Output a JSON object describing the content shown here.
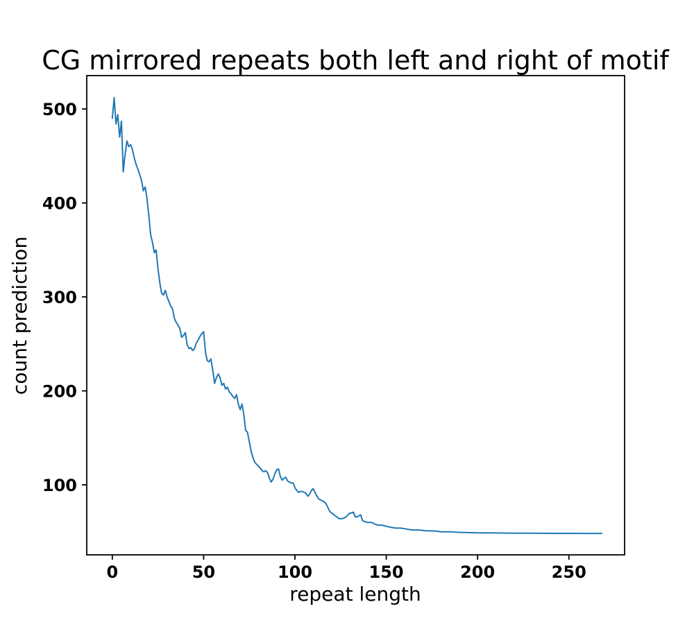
{
  "figure": {
    "background_color": "#ffffff"
  },
  "chart_data": {
    "type": "line",
    "title": "CG mirrored repeats both left and right of motif",
    "xlabel": "repeat length",
    "ylabel": "count prediction",
    "legend": null,
    "grid": false,
    "line_color": "#1f77b4",
    "line_width": 2,
    "spine_color": "#000000",
    "tick_color": "#000000",
    "xlim": [
      -14,
      280.5
    ],
    "ylim": [
      25.5,
      535.5
    ],
    "xticks": [
      0,
      50,
      100,
      150,
      200,
      250
    ],
    "yticks": [
      100,
      200,
      300,
      400,
      500
    ],
    "series": [
      {
        "name": "count prediction vs repeat length",
        "points": [
          [
            0,
            490
          ],
          [
            1,
            512
          ],
          [
            2,
            484
          ],
          [
            3,
            494
          ],
          [
            4,
            470
          ],
          [
            5,
            487
          ],
          [
            6,
            433
          ],
          [
            7,
            452
          ],
          [
            8,
            466
          ],
          [
            9,
            460
          ],
          [
            10,
            462
          ],
          [
            11,
            457
          ],
          [
            12,
            448
          ],
          [
            13,
            441
          ],
          [
            14,
            436
          ],
          [
            15,
            430
          ],
          [
            16,
            424
          ],
          [
            17,
            413
          ],
          [
            18,
            417
          ],
          [
            19,
            405
          ],
          [
            20,
            386
          ],
          [
            21,
            366
          ],
          [
            22,
            358
          ],
          [
            23,
            347
          ],
          [
            24,
            350
          ],
          [
            25,
            330
          ],
          [
            26,
            315
          ],
          [
            27,
            304
          ],
          [
            28,
            302
          ],
          [
            29,
            307
          ],
          [
            30,
            300
          ],
          [
            31,
            295
          ],
          [
            32,
            290
          ],
          [
            33,
            287
          ],
          [
            34,
            277
          ],
          [
            35,
            273
          ],
          [
            36,
            270
          ],
          [
            37,
            266
          ],
          [
            38,
            257
          ],
          [
            39,
            259
          ],
          [
            40,
            262
          ],
          [
            41,
            249
          ],
          [
            42,
            245
          ],
          [
            43,
            246
          ],
          [
            44,
            243
          ],
          [
            45,
            245
          ],
          [
            46,
            251
          ],
          [
            47,
            254
          ],
          [
            48,
            258
          ],
          [
            49,
            261
          ],
          [
            50,
            263
          ],
          [
            51,
            241
          ],
          [
            52,
            232
          ],
          [
            53,
            231
          ],
          [
            54,
            234
          ],
          [
            55,
            222
          ],
          [
            56,
            208
          ],
          [
            57,
            214
          ],
          [
            58,
            218
          ],
          [
            59,
            214
          ],
          [
            60,
            206
          ],
          [
            61,
            208
          ],
          [
            62,
            202
          ],
          [
            63,
            204
          ],
          [
            64,
            199
          ],
          [
            65,
            197
          ],
          [
            66,
            194
          ],
          [
            67,
            192
          ],
          [
            68,
            196
          ],
          [
            69,
            186
          ],
          [
            70,
            180
          ],
          [
            71,
            186
          ],
          [
            72,
            175
          ],
          [
            73,
            158
          ],
          [
            74,
            156
          ],
          [
            75,
            146
          ],
          [
            76,
            136
          ],
          [
            77,
            129
          ],
          [
            78,
            124
          ],
          [
            79,
            122
          ],
          [
            80,
            120
          ],
          [
            81,
            118
          ],
          [
            82,
            115
          ],
          [
            83,
            114
          ],
          [
            84,
            115
          ],
          [
            85,
            113
          ],
          [
            86,
            107
          ],
          [
            87,
            103
          ],
          [
            88,
            106
          ],
          [
            89,
            112
          ],
          [
            90,
            116
          ],
          [
            91,
            117
          ],
          [
            92,
            109
          ],
          [
            93,
            105
          ],
          [
            94,
            107
          ],
          [
            95,
            108
          ],
          [
            96,
            104
          ],
          [
            97,
            103
          ],
          [
            98,
            102
          ],
          [
            99,
            102
          ],
          [
            100,
            97
          ],
          [
            101,
            94
          ],
          [
            102,
            92
          ],
          [
            103,
            93
          ],
          [
            104,
            93
          ],
          [
            105,
            92
          ],
          [
            106,
            91
          ],
          [
            107,
            88
          ],
          [
            108,
            90
          ],
          [
            109,
            94
          ],
          [
            110,
            96
          ],
          [
            111,
            92
          ],
          [
            112,
            88
          ],
          [
            113,
            85
          ],
          [
            114,
            84
          ],
          [
            115,
            83
          ],
          [
            116,
            82
          ],
          [
            117,
            80
          ],
          [
            118,
            76
          ],
          [
            119,
            72
          ],
          [
            120,
            70
          ],
          [
            121,
            69
          ],
          [
            122,
            67
          ],
          [
            123,
            66
          ],
          [
            124,
            64
          ],
          [
            125,
            64
          ],
          [
            126,
            64
          ],
          [
            127,
            65
          ],
          [
            128,
            66
          ],
          [
            129,
            68
          ],
          [
            130,
            70
          ],
          [
            131,
            70
          ],
          [
            132,
            71
          ],
          [
            133,
            66
          ],
          [
            134,
            66
          ],
          [
            135,
            67
          ],
          [
            136,
            68
          ],
          [
            137,
            62
          ],
          [
            138,
            61
          ],
          [
            140,
            60
          ],
          [
            142,
            60
          ],
          [
            144,
            58
          ],
          [
            146,
            57
          ],
          [
            148,
            57
          ],
          [
            150,
            56
          ],
          [
            152,
            55
          ],
          [
            155,
            54
          ],
          [
            158,
            54
          ],
          [
            161,
            53
          ],
          [
            164,
            52
          ],
          [
            168,
            52
          ],
          [
            172,
            51
          ],
          [
            176,
            51
          ],
          [
            180,
            50
          ],
          [
            185,
            50
          ],
          [
            190,
            49.5
          ],
          [
            195,
            49.2
          ],
          [
            200,
            49
          ],
          [
            210,
            48.8
          ],
          [
            220,
            48.6
          ],
          [
            230,
            48.5
          ],
          [
            240,
            48.4
          ],
          [
            250,
            48.4
          ],
          [
            260,
            48.3
          ],
          [
            268,
            48.3
          ]
        ]
      }
    ]
  }
}
